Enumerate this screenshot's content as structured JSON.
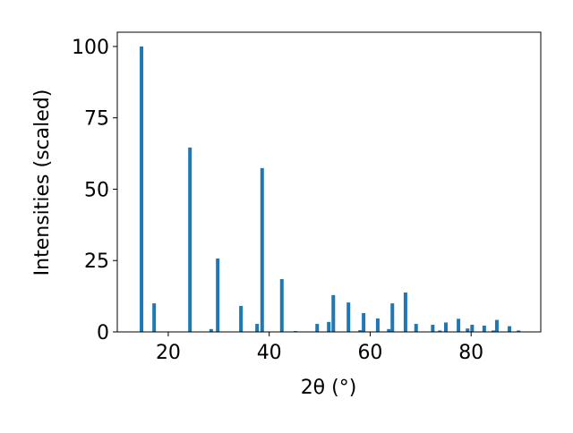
{
  "chart_data": {
    "type": "bar",
    "xlabel": "2θ (°)",
    "ylabel": "Intensities (scaled)",
    "color": "#1f77b4",
    "x": [
      14.7,
      17.2,
      24.3,
      28.5,
      29.8,
      34.4,
      37.6,
      38.6,
      42.5,
      45.2,
      49.5,
      51.8,
      52.7,
      55.7,
      58.0,
      58.7,
      61.5,
      63.7,
      64.4,
      67.0,
      69.1,
      72.4,
      73.8,
      75.0,
      77.5,
      79.3,
      80.2,
      82.6,
      84.4,
      85.1,
      87.6,
      89.4
    ],
    "values": [
      100,
      10,
      64.6,
      1,
      25.7,
      9.1,
      2.8,
      57.4,
      18.5,
      0.3,
      2.8,
      3.5,
      12.9,
      10.3,
      0.6,
      6.6,
      4.7,
      1,
      10,
      13.8,
      2.8,
      2.5,
      0.5,
      3.3,
      4.6,
      1.2,
      2.5,
      2.2,
      0.5,
      4.2,
      2,
      0.5
    ],
    "xlim": [
      9.9,
      93.8
    ],
    "ylim": [
      0,
      105
    ],
    "xticks": [
      20,
      40,
      60,
      80
    ],
    "yticks": [
      0,
      25,
      50,
      75,
      100
    ]
  }
}
